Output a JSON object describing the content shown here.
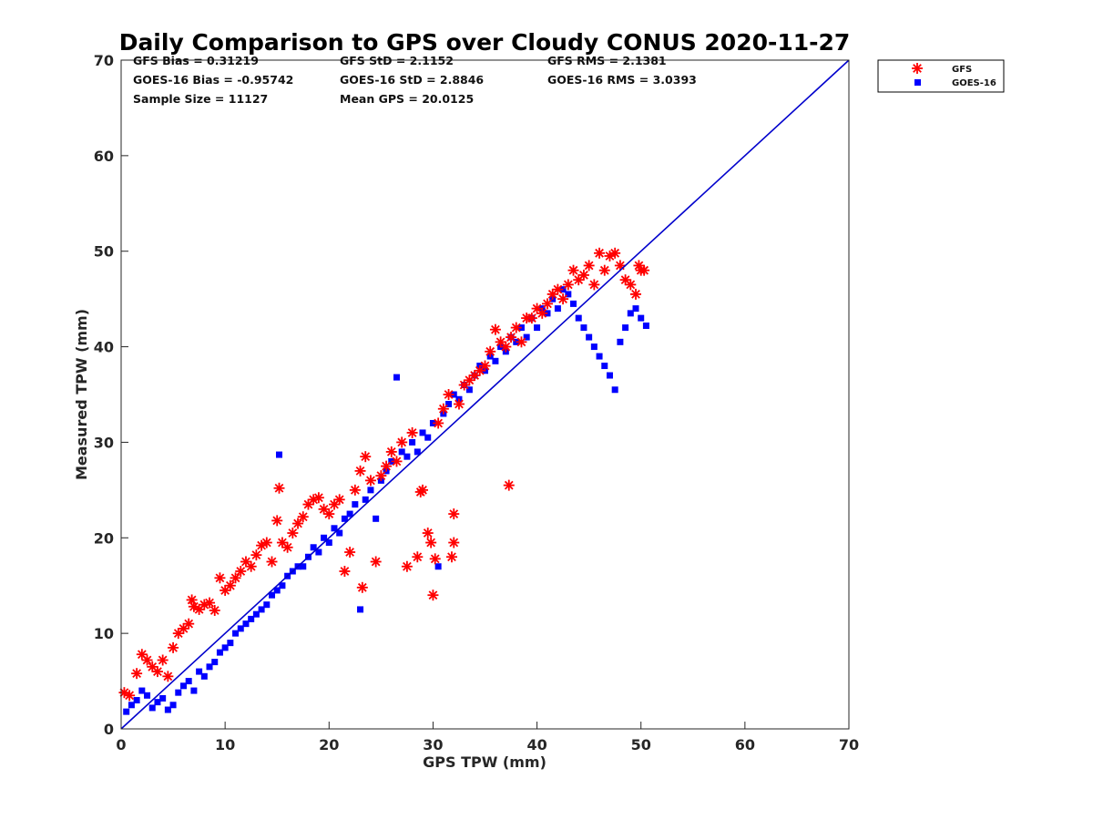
{
  "chart_data": {
    "type": "scatter",
    "title": "Daily Comparison to GPS over Cloudy CONUS 2020-11-27",
    "xlabel": "GPS TPW (mm)",
    "ylabel": "Measured TPW (mm)",
    "xlim": [
      0,
      70
    ],
    "ylim": [
      0,
      70
    ],
    "xticks": [
      "0",
      "10",
      "20",
      "30",
      "40",
      "50",
      "60",
      "70"
    ],
    "yticks": [
      "0",
      "10",
      "20",
      "30",
      "40",
      "50",
      "60",
      "70"
    ],
    "grid": false,
    "legend_position": "top-right-outside",
    "stats": [
      [
        "GFS Bias = 0.31219",
        "GFS StD = 2.1152",
        "GFS RMS = 2.1381"
      ],
      [
        "GOES-16 Bias = -0.95742",
        "GOES-16 StD = 2.8846",
        "GOES-16 RMS = 3.0393"
      ],
      [
        "Sample Size = 11127",
        "Mean GPS = 20.0125",
        ""
      ]
    ],
    "reference_line": {
      "name": "1:1",
      "x": [
        0,
        70
      ],
      "y": [
        0,
        70
      ],
      "color": "#0000cc"
    },
    "series": [
      {
        "name": "GFS",
        "marker": "asterisk",
        "color": "#ff0000",
        "points": [
          [
            0.3,
            3.8
          ],
          [
            0.8,
            3.5
          ],
          [
            1.5,
            5.8
          ],
          [
            2,
            7.8
          ],
          [
            2.5,
            7.2
          ],
          [
            3,
            6.5
          ],
          [
            3.5,
            6
          ],
          [
            4,
            7.2
          ],
          [
            4.5,
            5.5
          ],
          [
            5,
            8.5
          ],
          [
            5.5,
            10
          ],
          [
            6,
            10.5
          ],
          [
            6.5,
            11
          ],
          [
            6.8,
            13.5
          ],
          [
            7,
            12.8
          ],
          [
            7.5,
            12.5
          ],
          [
            8,
            13
          ],
          [
            8.5,
            13.2
          ],
          [
            9,
            12.4
          ],
          [
            9.5,
            15.8
          ],
          [
            10,
            14.5
          ],
          [
            10.5,
            15
          ],
          [
            11,
            15.8
          ],
          [
            11.5,
            16.5
          ],
          [
            12,
            17.5
          ],
          [
            12.5,
            17
          ],
          [
            13,
            18.2
          ],
          [
            13.5,
            19.2
          ],
          [
            14,
            19.5
          ],
          [
            14.5,
            17.5
          ],
          [
            15,
            21.8
          ],
          [
            15.2,
            25.2
          ],
          [
            15.5,
            19.5
          ],
          [
            16,
            19
          ],
          [
            16.5,
            20.5
          ],
          [
            17,
            21.5
          ],
          [
            17.5,
            22.2
          ],
          [
            18,
            23.5
          ],
          [
            18.5,
            24
          ],
          [
            19,
            24.2
          ],
          [
            19.5,
            23
          ],
          [
            20,
            22.5
          ],
          [
            20.5,
            23.5
          ],
          [
            21,
            24
          ],
          [
            21.5,
            16.5
          ],
          [
            22,
            18.5
          ],
          [
            22.5,
            25
          ],
          [
            23,
            27
          ],
          [
            23.2,
            14.8
          ],
          [
            23.5,
            28.5
          ],
          [
            24,
            26
          ],
          [
            24.5,
            17.5
          ],
          [
            25,
            26.5
          ],
          [
            25.5,
            27.5
          ],
          [
            26,
            29
          ],
          [
            26.5,
            28
          ],
          [
            27,
            30
          ],
          [
            27.5,
            17
          ],
          [
            28,
            31
          ],
          [
            28.5,
            18
          ],
          [
            28.8,
            24.8
          ],
          [
            29,
            25
          ],
          [
            29.5,
            20.5
          ],
          [
            29.8,
            19.5
          ],
          [
            30,
            14
          ],
          [
            30.2,
            17.8
          ],
          [
            30.5,
            32
          ],
          [
            31,
            33.5
          ],
          [
            31.5,
            35
          ],
          [
            31.8,
            18
          ],
          [
            32,
            19.5
          ],
          [
            32,
            22.5
          ],
          [
            32.5,
            34
          ],
          [
            33,
            36
          ],
          [
            33.5,
            36.5
          ],
          [
            34,
            37
          ],
          [
            34.5,
            37.5
          ],
          [
            35,
            38
          ],
          [
            35.5,
            39.5
          ],
          [
            36,
            41.8
          ],
          [
            36.5,
            40.5
          ],
          [
            37,
            40
          ],
          [
            37.3,
            25.5
          ],
          [
            37.5,
            41
          ],
          [
            38,
            42
          ],
          [
            38.5,
            40.5
          ],
          [
            39,
            43
          ],
          [
            39.5,
            43
          ],
          [
            40,
            44
          ],
          [
            40.5,
            43.5
          ],
          [
            41,
            44.5
          ],
          [
            41.5,
            45.5
          ],
          [
            42,
            46
          ],
          [
            42.5,
            45
          ],
          [
            43,
            46.5
          ],
          [
            43.5,
            48
          ],
          [
            44,
            47
          ],
          [
            44.5,
            47.5
          ],
          [
            45,
            48.5
          ],
          [
            45.5,
            46.5
          ],
          [
            46,
            49.8
          ],
          [
            46.5,
            48
          ],
          [
            47,
            49.5
          ],
          [
            47.5,
            49.8
          ],
          [
            48,
            48.5
          ],
          [
            48.5,
            47
          ],
          [
            49,
            46.5
          ],
          [
            49.5,
            45.5
          ],
          [
            49.8,
            48.5
          ],
          [
            50,
            48
          ],
          [
            50.3,
            48
          ]
        ]
      },
      {
        "name": "GOES-16",
        "marker": "square",
        "color": "#0000ff",
        "points": [
          [
            0.5,
            1.8
          ],
          [
            1,
            2.5
          ],
          [
            1.5,
            3
          ],
          [
            2,
            4
          ],
          [
            2.5,
            3.5
          ],
          [
            3,
            2.2
          ],
          [
            3.5,
            2.8
          ],
          [
            4,
            3.2
          ],
          [
            4.5,
            2
          ],
          [
            5,
            2.5
          ],
          [
            5.5,
            3.8
          ],
          [
            6,
            4.5
          ],
          [
            6.5,
            5
          ],
          [
            7,
            4
          ],
          [
            7.5,
            6
          ],
          [
            8,
            5.5
          ],
          [
            8.5,
            6.5
          ],
          [
            9,
            7
          ],
          [
            9.5,
            8
          ],
          [
            10,
            8.5
          ],
          [
            10.5,
            9
          ],
          [
            11,
            10
          ],
          [
            11.5,
            10.5
          ],
          [
            12,
            11
          ],
          [
            12.5,
            11.5
          ],
          [
            13,
            12
          ],
          [
            13.5,
            12.5
          ],
          [
            14,
            13
          ],
          [
            14.5,
            14
          ],
          [
            15,
            14.5
          ],
          [
            15.2,
            28.7
          ],
          [
            15.5,
            15
          ],
          [
            16,
            16
          ],
          [
            16.5,
            16.5
          ],
          [
            17,
            17
          ],
          [
            17.5,
            17
          ],
          [
            18,
            18
          ],
          [
            18.5,
            19
          ],
          [
            19,
            18.5
          ],
          [
            19.5,
            20
          ],
          [
            20,
            19.5
          ],
          [
            20.5,
            21
          ],
          [
            21,
            20.5
          ],
          [
            21.5,
            22
          ],
          [
            22,
            22.5
          ],
          [
            22.5,
            23.5
          ],
          [
            23,
            12.5
          ],
          [
            23.5,
            24
          ],
          [
            24,
            25
          ],
          [
            24.5,
            22
          ],
          [
            25,
            26
          ],
          [
            25.5,
            27
          ],
          [
            26,
            28
          ],
          [
            26.5,
            36.8
          ],
          [
            27,
            29
          ],
          [
            27.5,
            28.5
          ],
          [
            28,
            30
          ],
          [
            28.5,
            29
          ],
          [
            29,
            31
          ],
          [
            29.5,
            30.5
          ],
          [
            30,
            32
          ],
          [
            30.5,
            17
          ],
          [
            31,
            33
          ],
          [
            31.5,
            34
          ],
          [
            32,
            35
          ],
          [
            32.5,
            34.5
          ],
          [
            33,
            36
          ],
          [
            33.5,
            35.5
          ],
          [
            34,
            37
          ],
          [
            34.5,
            38
          ],
          [
            35,
            37.5
          ],
          [
            35.5,
            39
          ],
          [
            36,
            38.5
          ],
          [
            36.5,
            40
          ],
          [
            37,
            39.5
          ],
          [
            37.5,
            41
          ],
          [
            38,
            40.5
          ],
          [
            38.5,
            42
          ],
          [
            39,
            41
          ],
          [
            39.5,
            43
          ],
          [
            40,
            42
          ],
          [
            40.5,
            44
          ],
          [
            41,
            43.5
          ],
          [
            41.5,
            45
          ],
          [
            42,
            44
          ],
          [
            42.5,
            46
          ],
          [
            43,
            45.5
          ],
          [
            43.5,
            44.5
          ],
          [
            44,
            43
          ],
          [
            44.5,
            42
          ],
          [
            45,
            41
          ],
          [
            45.5,
            40
          ],
          [
            46,
            39
          ],
          [
            46.5,
            38
          ],
          [
            47,
            37
          ],
          [
            47.5,
            35.5
          ],
          [
            48,
            40.5
          ],
          [
            48.5,
            42
          ],
          [
            49,
            43.5
          ],
          [
            49.5,
            44
          ],
          [
            50,
            43
          ],
          [
            50.5,
            42.2
          ]
        ]
      }
    ]
  }
}
